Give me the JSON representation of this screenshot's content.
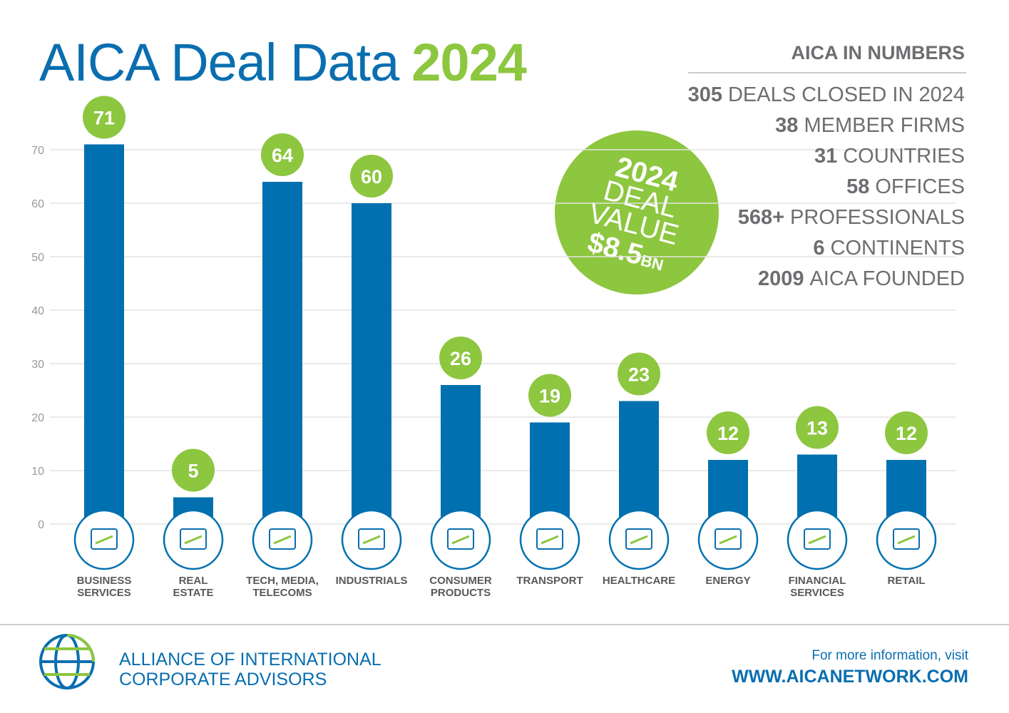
{
  "chart_data": {
    "type": "bar",
    "title": "AICA Deal Data",
    "title_year": "2024",
    "categories": [
      "BUSINESS\nSERVICES",
      "REAL\nESTATE",
      "TECH, MEDIA,\nTELECOMS",
      "INDUSTRIALS",
      "CONSUMER\nPRODUCTS",
      "TRANSPORT",
      "HEALTHCARE",
      "ENERGY",
      "FINANCIAL\nSERVICES",
      "RETAIL"
    ],
    "values": [
      71,
      5,
      64,
      60,
      26,
      19,
      23,
      12,
      13,
      12
    ],
    "color": "#0070b0",
    "label_color": "#8dc63f",
    "ylim": [
      0,
      80
    ],
    "yticks": [
      0,
      10,
      20,
      30,
      40,
      50,
      60,
      70
    ],
    "grid": true,
    "stats_heading": "AICA IN NUMBERS",
    "stats": [
      {
        "number": "305",
        "text": "DEALS CLOSED IN 2024"
      },
      {
        "number": "38",
        "text": "MEMBER FIRMS"
      },
      {
        "number": "31",
        "text": "COUNTRIES"
      },
      {
        "number": "58",
        "text": "OFFICES"
      },
      {
        "number": "568+",
        "text": "PROFESSIONALS"
      },
      {
        "number": "6",
        "text": "CONTINENTS"
      },
      {
        "number": "2009",
        "text": "AICA FOUNDED"
      }
    ],
    "deal_value": {
      "year": "2024",
      "line1": "DEAL",
      "line2": "VALUE",
      "amount": "$8.5",
      "unit": "BN"
    },
    "footer": {
      "org_line1": "ALLIANCE OF INTERNATIONAL",
      "org_line2": "CORPORATE ADVISORS",
      "info": "For more information, visit",
      "url": "WWW.AICANETWORK.COM"
    }
  }
}
